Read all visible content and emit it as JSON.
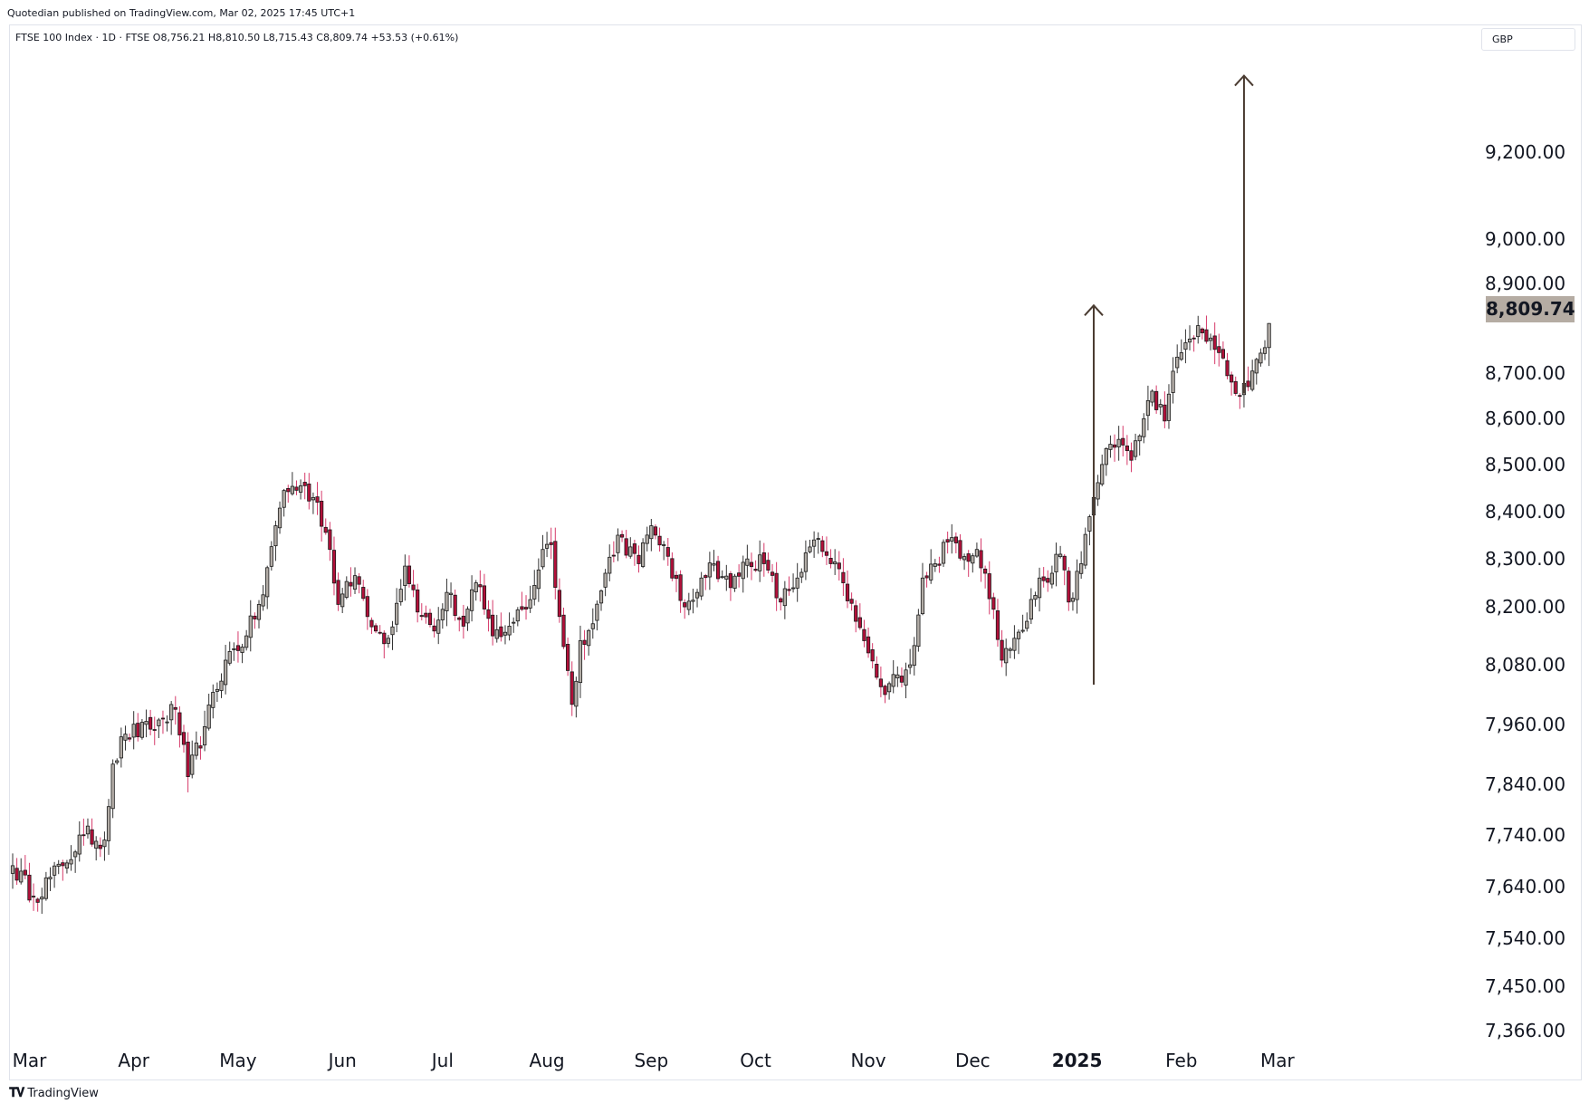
{
  "header": {
    "publish_line": "Quotedian published on TradingView.com, Mar 02, 2025 17:45 UTC+1",
    "symbol_line": "FTSE 100 Index · 1D · FTSE  O8,756.21  H8,810.50  L8,715.43  C8,809.74  +53.53 (+0.61%)",
    "currency": "GBP"
  },
  "footer": {
    "brand": "TradingView",
    "logo_icon": "tradingview-logo-icon"
  },
  "colors": {
    "up": "#b2aca6",
    "down": "#b2103a",
    "wick_up": "#333333",
    "wick_down": "#d63a6a",
    "arrow": "#4a3b31",
    "last_price_bg": "#b5aca3",
    "border": "#e0e3eb"
  },
  "chart_data": {
    "type": "candlestick",
    "title": "FTSE 100 Index",
    "timeframe": "1D",
    "exchange": "FTSE",
    "last": {
      "open": 8756.21,
      "high": 8810.5,
      "low": 8715.43,
      "close": 8809.74,
      "change": 53.53,
      "change_pct": 0.61,
      "label": "8,809.74"
    },
    "y_axis": {
      "scale": "log",
      "range": [
        7366,
        9420
      ],
      "ticks": [
        {
          "value": 9200,
          "label": "9,200.00"
        },
        {
          "value": 9000,
          "label": "9,000.00"
        },
        {
          "value": 8900,
          "label": "8,900.00"
        },
        {
          "value": 8700,
          "label": "8,700.00"
        },
        {
          "value": 8600,
          "label": "8,600.00"
        },
        {
          "value": 8500,
          "label": "8,500.00"
        },
        {
          "value": 8400,
          "label": "8,400.00"
        },
        {
          "value": 8300,
          "label": "8,300.00"
        },
        {
          "value": 8200,
          "label": "8,200.00"
        },
        {
          "value": 8080,
          "label": "8,080.00"
        },
        {
          "value": 7960,
          "label": "7,960.00"
        },
        {
          "value": 7840,
          "label": "7,840.00"
        },
        {
          "value": 7740,
          "label": "7,740.00"
        },
        {
          "value": 7640,
          "label": "7,640.00"
        },
        {
          "value": 7540,
          "label": "7,540.00"
        },
        {
          "value": 7450,
          "label": "7,450.00"
        },
        {
          "value": 7366,
          "label": "7,366.00"
        }
      ]
    },
    "x_axis": {
      "labels": [
        {
          "label": "Mar",
          "index": 4,
          "bold": false
        },
        {
          "label": "Apr",
          "index": 29,
          "bold": false
        },
        {
          "label": "May",
          "index": 54,
          "bold": false
        },
        {
          "label": "Jun",
          "index": 79,
          "bold": false
        },
        {
          "label": "Jul",
          "index": 103,
          "bold": false
        },
        {
          "label": "Aug",
          "index": 128,
          "bold": false
        },
        {
          "label": "Sep",
          "index": 153,
          "bold": false
        },
        {
          "label": "Oct",
          "index": 178,
          "bold": false
        },
        {
          "label": "Nov",
          "index": 205,
          "bold": false
        },
        {
          "label": "Dec",
          "index": 230,
          "bold": false
        },
        {
          "label": "2025",
          "index": 255,
          "bold": true
        },
        {
          "label": "Feb",
          "index": 280,
          "bold": false
        },
        {
          "label": "Mar",
          "index": 303,
          "bold": false
        }
      ]
    },
    "anchors": [
      [
        0,
        7680
      ],
      [
        5,
        7620
      ],
      [
        12,
        7680
      ],
      [
        17,
        7740
      ],
      [
        22,
        7730
      ],
      [
        24,
        7880
      ],
      [
        27,
        7940
      ],
      [
        33,
        7950
      ],
      [
        39,
        7990
      ],
      [
        42,
        7855
      ],
      [
        46,
        7955
      ],
      [
        51,
        8090
      ],
      [
        56,
        8140
      ],
      [
        60,
        8225
      ],
      [
        63,
        8370
      ],
      [
        65,
        8445
      ],
      [
        69,
        8455
      ],
      [
        73,
        8420
      ],
      [
        76,
        8320
      ],
      [
        78,
        8205
      ],
      [
        82,
        8265
      ],
      [
        87,
        8150
      ],
      [
        90,
        8135
      ],
      [
        94,
        8285
      ],
      [
        98,
        8180
      ],
      [
        101,
        8150
      ],
      [
        104,
        8230
      ],
      [
        108,
        8160
      ],
      [
        111,
        8250
      ],
      [
        115,
        8140
      ],
      [
        119,
        8160
      ],
      [
        124,
        8215
      ],
      [
        127,
        8320
      ],
      [
        129,
        8330
      ],
      [
        131,
        8180
      ],
      [
        134,
        8000
      ],
      [
        136,
        8130
      ],
      [
        139,
        8165
      ],
      [
        142,
        8270
      ],
      [
        145,
        8350
      ],
      [
        150,
        8290
      ],
      [
        153,
        8370
      ],
      [
        156,
        8330
      ],
      [
        158,
        8260
      ],
      [
        161,
        8200
      ],
      [
        165,
        8260
      ],
      [
        168,
        8290
      ],
      [
        172,
        8240
      ],
      [
        176,
        8300
      ],
      [
        180,
        8290
      ],
      [
        184,
        8210
      ],
      [
        188,
        8260
      ],
      [
        192,
        8340
      ],
      [
        196,
        8290
      ],
      [
        199,
        8250
      ],
      [
        202,
        8170
      ],
      [
        204,
        8130
      ],
      [
        207,
        8055
      ],
      [
        209,
        8020
      ],
      [
        212,
        8060
      ],
      [
        214,
        8070
      ],
      [
        216,
        8120
      ],
      [
        218,
        8260
      ],
      [
        221,
        8290
      ],
      [
        225,
        8345
      ],
      [
        228,
        8305
      ],
      [
        231,
        8320
      ],
      [
        233,
        8270
      ],
      [
        235,
        8195
      ],
      [
        237,
        8090
      ],
      [
        240,
        8135
      ],
      [
        243,
        8170
      ],
      [
        246,
        8260
      ],
      [
        249,
        8270
      ],
      [
        251,
        8310
      ],
      [
        253,
        8210
      ],
      [
        256,
        8290
      ],
      [
        259,
        8430
      ],
      [
        262,
        8535
      ],
      [
        265,
        8555
      ],
      [
        268,
        8510
      ],
      [
        271,
        8600
      ],
      [
        273,
        8660
      ],
      [
        276,
        8595
      ],
      [
        279,
        8735
      ],
      [
        282,
        8775
      ],
      [
        284,
        8805
      ],
      [
        286,
        8770
      ],
      [
        289,
        8745
      ],
      [
        292,
        8680
      ],
      [
        294,
        8650
      ],
      [
        296,
        8670
      ],
      [
        298,
        8730
      ],
      [
        300,
        8756
      ],
      [
        301,
        8809.74
      ]
    ],
    "arrows": [
      {
        "from_index": 259,
        "from_value": 8040,
        "to_value": 8850
      },
      {
        "from_index": 295,
        "from_value": 8655,
        "to_value": 9380
      }
    ]
  }
}
